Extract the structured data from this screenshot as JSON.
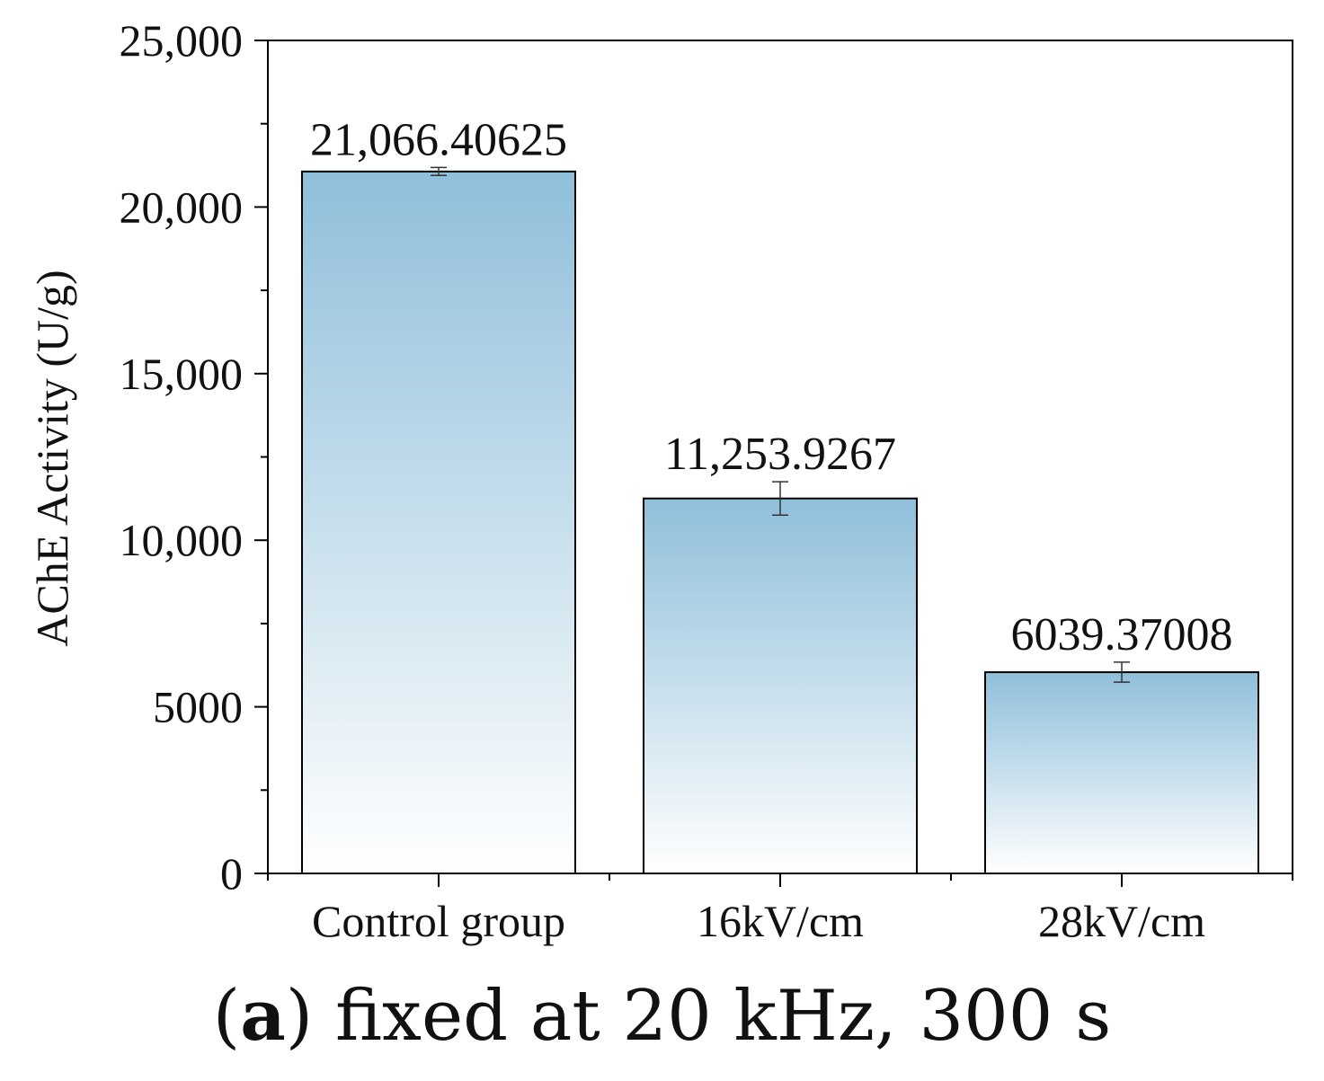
{
  "chart_data": {
    "type": "bar",
    "categories": [
      "Control group",
      "16kV/cm",
      "28kV/cm"
    ],
    "values": [
      21066.40625,
      11253.9267,
      6039.37008
    ],
    "errors": [
      120,
      500,
      300
    ],
    "value_labels": [
      "21,066.40625",
      "11,253.9267",
      "6039.37008"
    ],
    "ylabel": "AChE Activity (U/g)",
    "xlabel": "",
    "ylim": [
      0,
      25000
    ],
    "yticks": [
      0,
      5000,
      10000,
      15000,
      20000,
      25000
    ],
    "ytick_labels": [
      "0",
      "5000",
      "10,000",
      "15,000",
      "20,000",
      "25,000"
    ],
    "grid": false,
    "colors": {
      "bar_top": "#8fbfda",
      "bar_bottom": "#ffffff",
      "edge": "#000000"
    }
  },
  "caption": {
    "letter": "a",
    "open": "(",
    "close": ")",
    "text": " fixed at 20 kHz, 300 s"
  }
}
